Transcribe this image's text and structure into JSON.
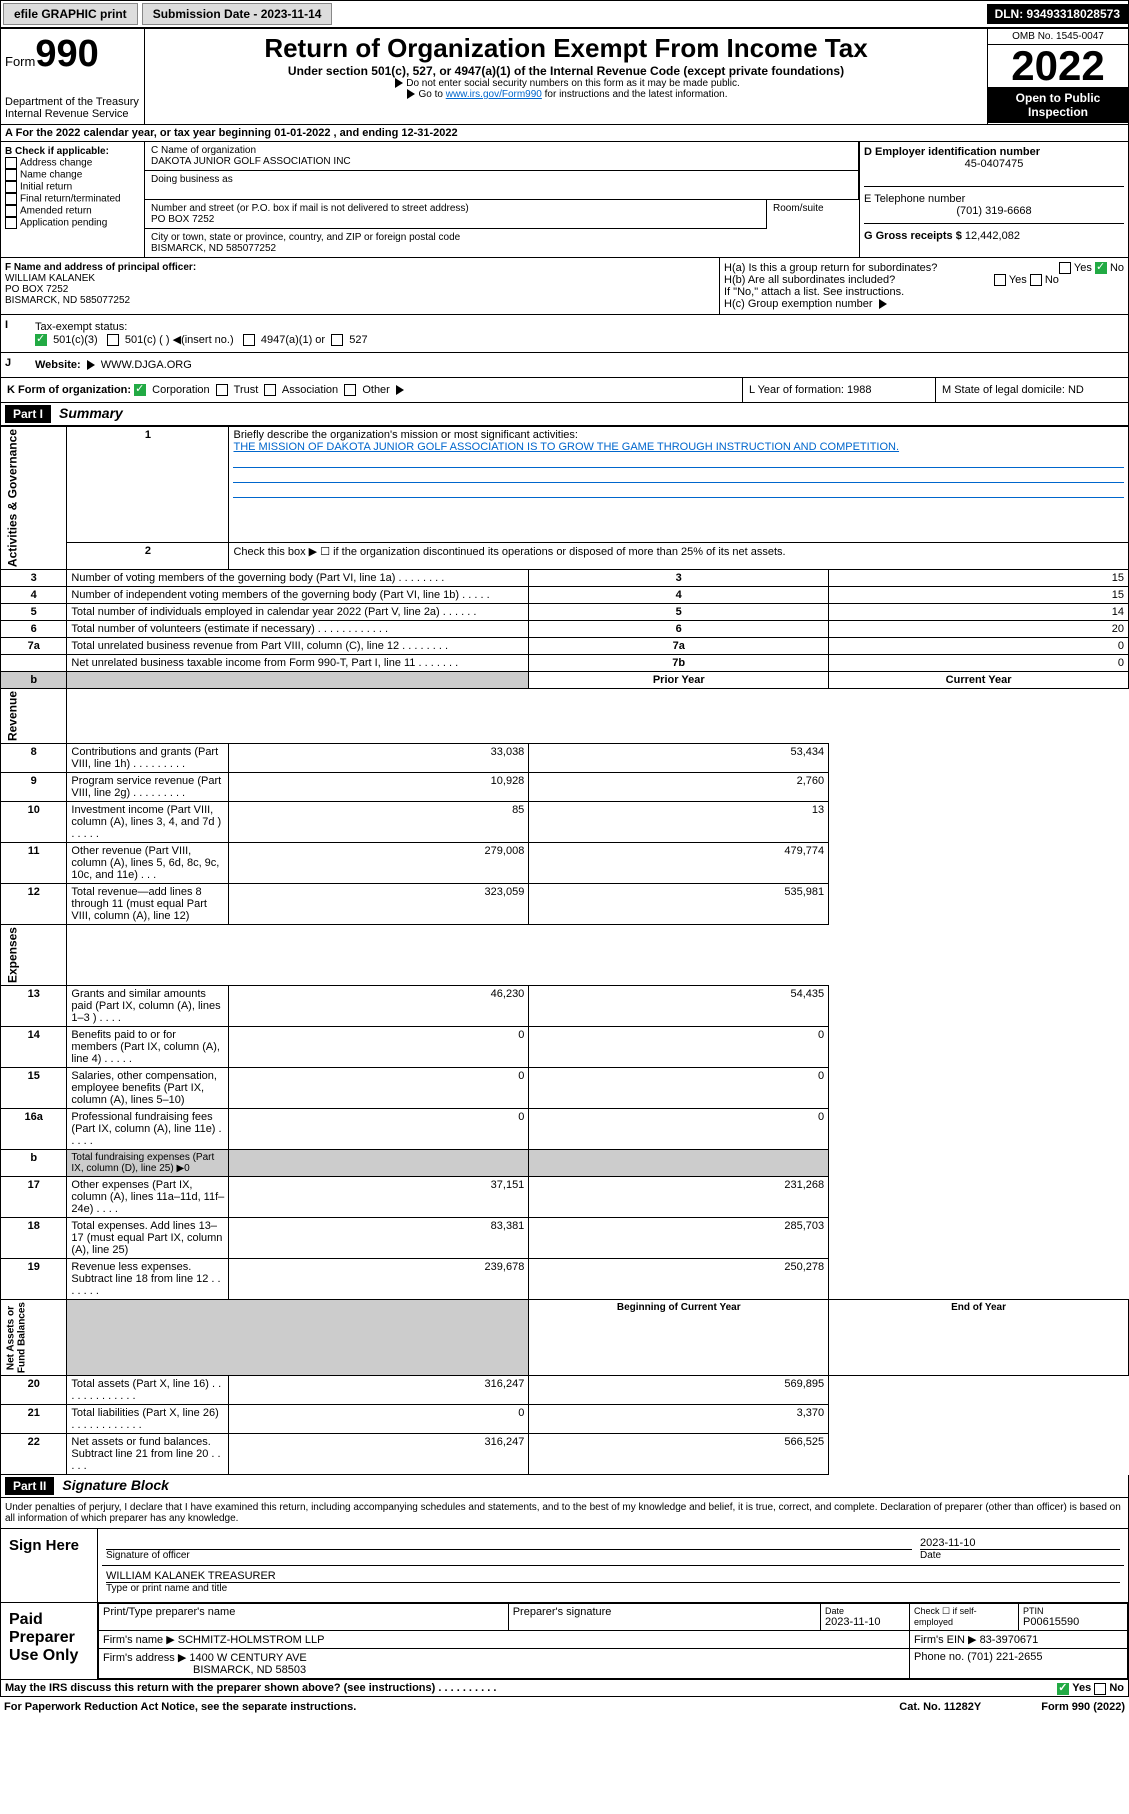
{
  "header": {
    "efile": "efile GRAPHIC print",
    "subdate_lbl": "Submission Date - ",
    "subdate": "2023-11-14",
    "dln": "DLN: 93493318028573"
  },
  "top": {
    "form": "Form",
    "num": "990",
    "dept": "Department of the Treasury",
    "irs": "Internal Revenue Service",
    "title": "Return of Organization Exempt From Income Tax",
    "sub": "Under section 501(c), 527, or 4947(a)(1) of the Internal Revenue Code (except private foundations)",
    "note1": "Do not enter social security numbers on this form as it may be made public.",
    "note2a": "Go to ",
    "note2b": "www.irs.gov/Form990",
    "note2c": " for instructions and the latest information.",
    "omb": "OMB No. 1545-0047",
    "year": "2022",
    "open": "Open to Public Inspection"
  },
  "A": "For the 2022 calendar year, or tax year beginning 01-01-2022    , and ending 12-31-2022",
  "B": {
    "lbl": "B Check if applicable:",
    "opts": [
      "Address change",
      "Name change",
      "Initial return",
      "Final return/terminated",
      "Amended return",
      "Application pending"
    ]
  },
  "C": {
    "name_lbl": "C Name of organization",
    "name": "DAKOTA JUNIOR GOLF ASSOCIATION INC",
    "dba": "Doing business as",
    "addr_lbl": "Number and street (or P.O. box if mail is not delivered to street address)",
    "room": "Room/suite",
    "addr": "PO BOX 7252",
    "city_lbl": "City or town, state or province, country, and ZIP or foreign postal code",
    "city": "BISMARCK, ND  585077252"
  },
  "D": {
    "lbl": "D Employer identification number",
    "val": "45-0407475"
  },
  "E": {
    "lbl": "E Telephone number",
    "val": "(701) 319-6668"
  },
  "G": {
    "lbl": "G Gross receipts $",
    "val": "12,442,082"
  },
  "F": {
    "lbl": "F  Name and address of principal officer:",
    "name": "WILLIAM KALANEK",
    "addr1": "PO BOX 7252",
    "addr2": "BISMARCK, ND  585077252"
  },
  "H": {
    "a": "H(a)  Is this a group return for subordinates?",
    "b": "H(b)  Are all subordinates included?",
    "note": "If \"No,\" attach a list. See instructions.",
    "c": "H(c)  Group exemption number"
  },
  "I": {
    "lbl": "Tax-exempt status:",
    "a": "501(c)(3)",
    "b": "501(c) (  )",
    "ins": "(insert no.)",
    "c": "4947(a)(1) or",
    "d": "527"
  },
  "J": {
    "lbl": "Website:",
    "val": "WWW.DJGA.ORG"
  },
  "K": {
    "lbl": "K Form of organization:",
    "opts": [
      "Corporation",
      "Trust",
      "Association",
      "Other"
    ]
  },
  "L": {
    "lbl": "L Year of formation: ",
    "val": "1988"
  },
  "M": {
    "lbl": "M State of legal domicile: ",
    "val": "ND"
  },
  "part1": {
    "hdr": "Part I",
    "ttl": "Summary"
  },
  "s1": {
    "l1": "Briefly describe the organization's mission or most significant activities:",
    "mission": "THE MISSION OF DAKOTA JUNIOR GOLF ASSOCIATION IS TO GROW THE GAME THROUGH INSTRUCTION AND COMPETITION.",
    "l2": "Check this box ▶ ☐  if the organization discontinued its operations or disposed of more than 25% of its net assets.",
    "rows": [
      {
        "n": "3",
        "t": "Number of voting members of the governing body (Part VI, line 1a)  .   .   .   .   .   .   .   .",
        "r": "3",
        "v": "15"
      },
      {
        "n": "4",
        "t": "Number of independent voting members of the governing body (Part VI, line 1b)  .   .   .   .   .",
        "r": "4",
        "v": "15"
      },
      {
        "n": "5",
        "t": "Total number of individuals employed in calendar year 2022 (Part V, line 2a)  .   .   .   .   .   .",
        "r": "5",
        "v": "14"
      },
      {
        "n": "6",
        "t": "Total number of volunteers (estimate if necessary)  .   .   .   .   .   .   .   .   .   .   .   .",
        "r": "6",
        "v": "20"
      },
      {
        "n": "7a",
        "t": "Total unrelated business revenue from Part VIII, column (C), line 12  .   .   .   .   .   .   .   .",
        "r": "7a",
        "v": "0"
      },
      {
        "n": "",
        "t": "Net unrelated business taxable income from Form 990-T, Part I, line 11  .   .   .   .   .   .   .",
        "r": "7b",
        "v": "0"
      }
    ]
  },
  "rev": {
    "h1": "Prior Year",
    "h2": "Current Year",
    "rows": [
      {
        "n": "8",
        "t": "Contributions and grants (Part VIII, line 1h)  .   .   .   .   .   .   .   .   .",
        "p": "33,038",
        "c": "53,434"
      },
      {
        "n": "9",
        "t": "Program service revenue (Part VIII, line 2g)  .   .   .   .   .   .   .   .   .",
        "p": "10,928",
        "c": "2,760"
      },
      {
        "n": "10",
        "t": "Investment income (Part VIII, column (A), lines 3, 4, and 7d )  .   .   .   .   .",
        "p": "85",
        "c": "13"
      },
      {
        "n": "11",
        "t": "Other revenue (Part VIII, column (A), lines 5, 6d, 8c, 9c, 10c, and 11e)  .   .   .",
        "p": "279,008",
        "c": "479,774"
      },
      {
        "n": "12",
        "t": "Total revenue—add lines 8 through 11 (must equal Part VIII, column (A), line 12)",
        "p": "323,059",
        "c": "535,981"
      }
    ]
  },
  "exp": {
    "rows": [
      {
        "n": "13",
        "t": "Grants and similar amounts paid (Part IX, column (A), lines 1–3 )  .   .   .   .",
        "p": "46,230",
        "c": "54,435"
      },
      {
        "n": "14",
        "t": "Benefits paid to or for members (Part IX, column (A), line 4)  .   .   .   .   .",
        "p": "0",
        "c": "0"
      },
      {
        "n": "15",
        "t": "Salaries, other compensation, employee benefits (Part IX, column (A), lines 5–10)",
        "p": "0",
        "c": "0"
      },
      {
        "n": "16a",
        "t": "Professional fundraising fees (Part IX, column (A), line 11e)  .   .   .   .   .",
        "p": "0",
        "c": "0"
      },
      {
        "n": "b",
        "t": "Total fundraising expenses (Part IX, column (D), line 25) ▶0",
        "p": "",
        "c": "",
        "gy": true
      },
      {
        "n": "17",
        "t": "Other expenses (Part IX, column (A), lines 11a–11d, 11f–24e)  .   .   .   .",
        "p": "37,151",
        "c": "231,268"
      },
      {
        "n": "18",
        "t": "Total expenses. Add lines 13–17 (must equal Part IX, column (A), line 25)",
        "p": "83,381",
        "c": "285,703"
      },
      {
        "n": "19",
        "t": "Revenue less expenses. Subtract line 18 from line 12  .   .   .   .   .   .   .",
        "p": "239,678",
        "c": "250,278"
      }
    ]
  },
  "na": {
    "h1": "Beginning of Current Year",
    "h2": "End of Year",
    "rows": [
      {
        "n": "20",
        "t": "Total assets (Part X, line 16)  .   .   .   .   .   .   .   .   .   .   .   .   .",
        "p": "316,247",
        "c": "569,895"
      },
      {
        "n": "21",
        "t": "Total liabilities (Part X, line 26)  .   .   .   .   .   .   .   .   .   .   .   .",
        "p": "0",
        "c": "3,370"
      },
      {
        "n": "22",
        "t": "Net assets or fund balances. Subtract line 21 from line 20  .   .   .   .   .",
        "p": "316,247",
        "c": "566,525"
      }
    ]
  },
  "part2": {
    "hdr": "Part II",
    "ttl": "Signature Block"
  },
  "decl": "Under penalties of perjury, I declare that I have examined this return, including accompanying schedules and statements, and to the best of my knowledge and belief, it is true, correct, and complete. Declaration of preparer (other than officer) is based on all information of which preparer has any knowledge.",
  "sign": {
    "lbl": "Sign Here",
    "sig": "Signature of officer",
    "date": "2023-11-10",
    "dlbl": "Date",
    "name": "WILLIAM KALANEK  TREASURER",
    "nlbl": "Type or print name and title"
  },
  "prep": {
    "lbl": "Paid Preparer Use Only",
    "h": [
      "Print/Type preparer's name",
      "Preparer's signature",
      "Date",
      "",
      "PTIN"
    ],
    "date": "2023-11-10",
    "check": "Check ☐ if self-employed",
    "ptin": "P00615590",
    "firm_lbl": "Firm's name    ▶",
    "firm": "SCHMITZ-HOLMSTROM LLP",
    "ein_lbl": "Firm's EIN ▶",
    "ein": "83-3970671",
    "addr_lbl": "Firm's address ▶",
    "addr1": "1400 W CENTURY AVE",
    "addr2": "BISMARCK, ND  58503",
    "ph_lbl": "Phone no. ",
    "ph": "(701) 221-2655"
  },
  "may": "May the IRS discuss this return with the preparer shown above? (see instructions)  .   .   .   .   .   .   .   .   .   .",
  "ft": {
    "l": "For Paperwork Reduction Act Notice, see the separate instructions.",
    "m": "Cat. No. 11282Y",
    "r": "Form 990 (2022)"
  }
}
